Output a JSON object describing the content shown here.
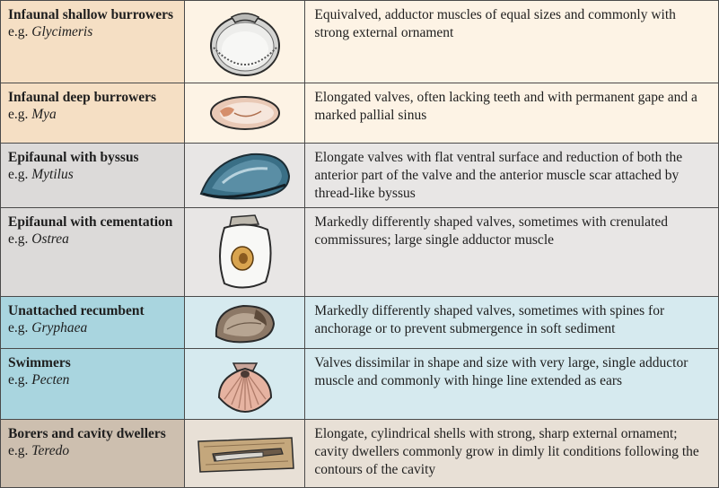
{
  "colors": {
    "tan": "#f5dfc4",
    "tan_light": "#fdf3e5",
    "grey": "#dcdad9",
    "grey_light": "#e8e6e5",
    "blue": "#a9d5df",
    "blue_light": "#d6eaef",
    "brown": "#cdbfaf",
    "brown_light": "#e8e0d6"
  },
  "rows": [
    {
      "name": "Infaunal shallow burrowers",
      "eg_prefix": "e.g. ",
      "genus": "Glycimeris",
      "description": "Equivalved, adductor muscles of equal sizes and commonly with strong external ornament",
      "icon": "glycimeris-shell-icon",
      "group": "tan"
    },
    {
      "name": "Infaunal deep burrowers",
      "eg_prefix": "e.g. ",
      "genus": "Mya",
      "description": "Elongated valves, often lacking teeth and with permanent gape and a marked pallial sinus",
      "icon": "mya-shell-icon",
      "group": "tan"
    },
    {
      "name": "Epifaunal with byssus",
      "eg_prefix": "e.g. ",
      "genus": "Mytilus",
      "description": "Elongate valves with flat ventral surface and reduction of both the anterior part of the valve and the anterior muscle scar attached by thread-like byssus",
      "icon": "mytilus-shell-icon",
      "group": "grey"
    },
    {
      "name": "Epifaunal with cementation",
      "eg_prefix": "e.g. ",
      "genus": "Ostrea",
      "description": "Markedly differently shaped valves, sometimes with crenulated commissures; large single adductor muscle",
      "icon": "ostrea-shell-icon",
      "group": "grey"
    },
    {
      "name": "Unattached recumbent",
      "eg_prefix": "e.g. ",
      "genus": "Gryphaea",
      "description": "Markedly differently shaped valves, sometimes with spines for anchorage or to prevent submergence in soft sediment",
      "icon": "gryphaea-shell-icon",
      "group": "blue"
    },
    {
      "name": "Swimmers",
      "eg_prefix": "e.g. ",
      "genus": "Pecten",
      "description": "Valves dissimilar in shape and size with very large, single adductor muscle and commonly with hinge line extended as ears",
      "icon": "pecten-shell-icon",
      "group": "blue"
    },
    {
      "name": "Borers and cavity dwellers",
      "eg_prefix": "e.g. ",
      "genus": "Teredo",
      "description": "Elongate, cylindrical shells with strong, sharp external ornament; cavity dwellers commonly grow in dimly lit conditions following the contours of the cavity",
      "icon": "teredo-in-wood-icon",
      "group": "brown"
    }
  ]
}
